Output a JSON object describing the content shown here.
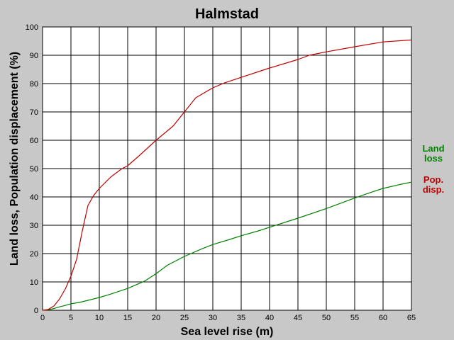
{
  "chart_data": {
    "type": "line",
    "title": "Halmstad",
    "xlabel": "Sea level rise (m)",
    "ylabel": "Land loss, Population displacement (%)",
    "xlim": [
      0,
      65
    ],
    "ylim": [
      0,
      100
    ],
    "x_ticks": [
      0,
      5,
      10,
      15,
      20,
      25,
      30,
      35,
      40,
      45,
      50,
      55,
      60,
      65
    ],
    "y_ticks": [
      0,
      10,
      20,
      30,
      40,
      50,
      60,
      70,
      80,
      90,
      100
    ],
    "grid": true,
    "legend_position": "right",
    "series": [
      {
        "name": "Land loss",
        "legend_lines": [
          "Land",
          "loss"
        ],
        "color": "#008000",
        "x": [
          0,
          1,
          2,
          3,
          4,
          5,
          6,
          7,
          8,
          10,
          12,
          15,
          18,
          20,
          22,
          25,
          28,
          30,
          33,
          35,
          38,
          40,
          45,
          50,
          55,
          58,
          60,
          63,
          65
        ],
        "y": [
          0,
          0.2,
          0.6,
          1.2,
          1.7,
          2.3,
          2.6,
          3.0,
          3.5,
          4.5,
          5.7,
          7.7,
          10.3,
          12.9,
          15.9,
          19.0,
          21.6,
          23.2,
          25.0,
          26.3,
          28.0,
          29.3,
          32.5,
          35.9,
          39.6,
          41.7,
          43.0,
          44.4,
          45.2
        ]
      },
      {
        "name": "Pop. disp.",
        "legend_lines": [
          "Pop.",
          "disp."
        ],
        "color": "#c00000",
        "x": [
          0,
          1,
          2,
          3,
          4,
          5,
          6,
          7,
          8,
          9,
          10,
          12,
          14,
          15,
          17,
          20,
          23,
          25,
          27,
          30,
          32,
          35,
          40,
          45,
          47,
          50,
          55,
          60,
          65
        ],
        "y": [
          0,
          0.3,
          1.5,
          4.0,
          7.5,
          12,
          18,
          28,
          37,
          40.5,
          43,
          47,
          50,
          51,
          54.5,
          60,
          65,
          70,
          75,
          78.5,
          80.2,
          82.2,
          85.5,
          88.5,
          90,
          91.2,
          93,
          94.7,
          95.4
        ]
      }
    ]
  }
}
